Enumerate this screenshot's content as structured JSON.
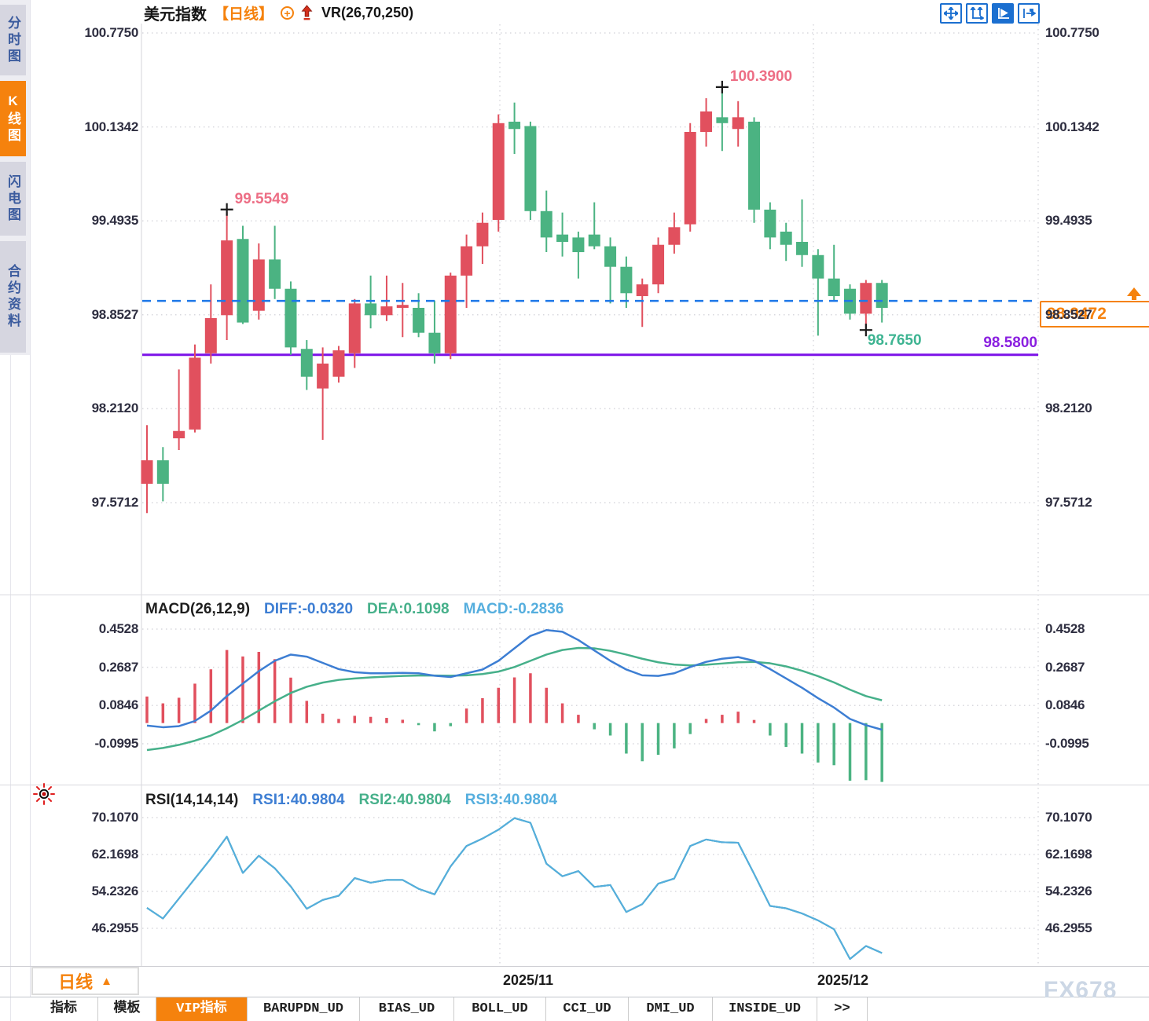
{
  "header": {
    "symbol": "美元指数",
    "period": "【日线】",
    "indicator": "VR(26,70,250)"
  },
  "toolbar": {
    "buttons": [
      {
        "icon": "move-crosshair-icon",
        "active": false
      },
      {
        "icon": "y-axis-scale-icon",
        "active": false
      },
      {
        "icon": "auto-scroll-icon",
        "active": true
      },
      {
        "icon": "go-to-latest-icon",
        "active": false
      }
    ]
  },
  "sidebar": {
    "items": [
      {
        "label": "分时图",
        "active": false
      },
      {
        "label": "K线图",
        "active": true
      },
      {
        "label": "闪电图",
        "active": false
      },
      {
        "label": "合约资料",
        "active": false
      }
    ]
  },
  "footer": {
    "period_button": "日线",
    "period_arrow": "▲",
    "date_labels": [
      "2025/11",
      "2025/12"
    ],
    "watermark": "FX678",
    "tabs": [
      {
        "label": "指标",
        "active": false
      },
      {
        "label": "模板",
        "active": false
      },
      {
        "label": "VIP指标",
        "active": true
      },
      {
        "label": "BARUPDN_UD",
        "active": false
      },
      {
        "label": "BIAS_UD",
        "active": false
      },
      {
        "label": "BOLL_UD",
        "active": false
      },
      {
        "label": "CCI_UD",
        "active": false
      },
      {
        "label": "DMI_UD",
        "active": false
      },
      {
        "label": "INSIDE_UD",
        "active": false
      },
      {
        "label": ">>",
        "active": false
      }
    ]
  },
  "chart_data": [
    {
      "type": "candlestick",
      "title": "美元指数 日线",
      "y_tick_labels": [
        "100.7750",
        "100.1342",
        "99.4935",
        "98.8527",
        "98.2120",
        "97.5712"
      ],
      "y_ticks": [
        100.775,
        100.1342,
        99.4935,
        98.8527,
        98.212,
        97.5712
      ],
      "ylim": [
        96.94,
        100.84
      ],
      "grid": "dotted",
      "up_color": "#e1505e",
      "down_color": "#4bb382",
      "candles_ohlc": [
        [
          97.7,
          98.1,
          97.5,
          97.86
        ],
        [
          97.86,
          97.95,
          97.58,
          97.7
        ],
        [
          98.01,
          98.48,
          97.93,
          98.06
        ],
        [
          98.07,
          98.65,
          98.05,
          98.56
        ],
        [
          98.59,
          99.06,
          98.52,
          98.83
        ],
        [
          98.85,
          99.5549,
          98.68,
          99.36
        ],
        [
          99.37,
          99.46,
          98.79,
          98.8
        ],
        [
          98.88,
          99.34,
          98.82,
          99.23
        ],
        [
          99.23,
          99.46,
          98.96,
          99.03
        ],
        [
          99.03,
          99.08,
          98.58,
          98.63
        ],
        [
          98.62,
          98.68,
          98.34,
          98.43
        ],
        [
          98.35,
          98.63,
          98.0,
          98.52
        ],
        [
          98.43,
          98.64,
          98.39,
          98.61
        ],
        [
          98.59,
          98.96,
          98.49,
          98.93
        ],
        [
          98.93,
          99.12,
          98.76,
          98.85
        ],
        [
          98.85,
          99.12,
          98.81,
          98.91
        ],
        [
          98.9,
          99.07,
          98.7,
          98.92
        ],
        [
          98.9,
          99.0,
          98.7,
          98.73
        ],
        [
          98.73,
          98.95,
          98.52,
          98.59
        ],
        [
          98.59,
          99.14,
          98.55,
          99.12
        ],
        [
          99.12,
          99.4,
          98.9,
          99.32
        ],
        [
          99.32,
          99.55,
          99.2,
          99.48
        ],
        [
          99.5,
          100.22,
          99.42,
          100.16
        ],
        [
          100.17,
          100.3,
          99.95,
          100.12
        ],
        [
          100.14,
          100.17,
          99.5,
          99.56
        ],
        [
          99.56,
          99.7,
          99.28,
          99.38
        ],
        [
          99.4,
          99.55,
          99.25,
          99.35
        ],
        [
          99.38,
          99.42,
          99.1,
          99.28
        ],
        [
          99.4,
          99.62,
          99.3,
          99.32
        ],
        [
          99.32,
          99.38,
          98.93,
          99.18
        ],
        [
          99.18,
          99.25,
          98.9,
          99.0
        ],
        [
          98.98,
          99.1,
          98.77,
          99.06
        ],
        [
          99.06,
          99.38,
          99.0,
          99.33
        ],
        [
          99.33,
          99.55,
          99.27,
          99.45
        ],
        [
          99.47,
          100.16,
          99.42,
          100.1
        ],
        [
          100.1,
          100.33,
          100.0,
          100.24
        ],
        [
          100.2,
          100.39,
          99.97,
          100.16
        ],
        [
          100.12,
          100.31,
          100.0,
          100.2
        ],
        [
          100.17,
          100.2,
          99.48,
          99.57
        ],
        [
          99.57,
          99.62,
          99.3,
          99.38
        ],
        [
          99.42,
          99.48,
          99.22,
          99.33
        ],
        [
          99.35,
          99.64,
          99.18,
          99.26
        ],
        [
          99.26,
          99.3,
          98.71,
          99.1
        ],
        [
          99.1,
          99.33,
          98.95,
          98.98
        ],
        [
          99.03,
          99.06,
          98.82,
          98.86
        ],
        [
          98.86,
          99.09,
          98.765,
          99.07
        ],
        [
          99.07,
          99.09,
          98.8,
          98.9
        ]
      ],
      "markers": [
        {
          "label": "99.5549",
          "candle": 6,
          "kind": "high"
        },
        {
          "label": "100.3900",
          "candle": 37,
          "kind": "high"
        },
        {
          "label": "98.7650",
          "candle": 46,
          "kind": "low"
        }
      ],
      "current_price": {
        "label": "98.9472",
        "value": 98.9472,
        "color": "#f5820d",
        "line_color": "#1e78e8",
        "line_style": "dashed"
      },
      "support_line": {
        "label": "98.5800",
        "value": 98.58,
        "color": "#7c12e8",
        "label_color": "#8a1fe0"
      },
      "x_axis_dates": [
        "2025/11",
        "2025/12"
      ]
    },
    {
      "type": "macd",
      "title": "MACD(26,12,9)",
      "legend": [
        {
          "text": "DIFF:-0.0320",
          "color": "#3d7ed3"
        },
        {
          "text": "DEA:0.1098",
          "color": "#46b08a"
        },
        {
          "text": "MACD:-0.2836",
          "color": "#55aede"
        }
      ],
      "y_tick_labels": [
        "0.4528",
        "0.2687",
        "0.0846",
        "-0.0995"
      ],
      "y_ticks": [
        0.4528,
        0.2687,
        0.0846,
        -0.0995
      ],
      "ylim": [
        -0.3,
        0.5
      ],
      "bar_up_color": "#e1505e",
      "bar_down_color": "#4bb382",
      "histogram": [
        0.128,
        0.095,
        0.122,
        0.19,
        0.259,
        0.352,
        0.321,
        0.343,
        0.308,
        0.219,
        0.107,
        0.045,
        0.02,
        0.035,
        0.03,
        0.025,
        0.016,
        -0.01,
        -0.04,
        -0.015,
        0.07,
        0.12,
        0.17,
        0.22,
        0.24,
        0.17,
        0.095,
        0.04,
        -0.03,
        -0.06,
        -0.147,
        -0.184,
        -0.153,
        -0.122,
        -0.053,
        0.02,
        0.04,
        0.055,
        0.015,
        -0.06,
        -0.115,
        -0.147,
        -0.19,
        -0.203,
        -0.278,
        -0.275,
        -0.2836
      ],
      "series": [
        {
          "name": "DIFF",
          "color": "#3d7ed3",
          "values": [
            -0.012,
            -0.02,
            -0.015,
            0.01,
            0.06,
            0.13,
            0.19,
            0.25,
            0.3,
            0.33,
            0.32,
            0.29,
            0.26,
            0.245,
            0.24,
            0.24,
            0.242,
            0.24,
            0.228,
            0.222,
            0.24,
            0.258,
            0.3,
            0.36,
            0.42,
            0.448,
            0.44,
            0.4,
            0.35,
            0.3,
            0.258,
            0.23,
            0.227,
            0.24,
            0.27,
            0.295,
            0.31,
            0.318,
            0.3,
            0.26,
            0.215,
            0.17,
            0.12,
            0.075,
            0.02,
            -0.01,
            -0.032
          ]
        },
        {
          "name": "DEA",
          "color": "#46b08a",
          "values": [
            -0.13,
            -0.12,
            -0.105,
            -0.085,
            -0.06,
            -0.025,
            0.015,
            0.06,
            0.105,
            0.145,
            0.175,
            0.195,
            0.208,
            0.215,
            0.22,
            0.224,
            0.227,
            0.229,
            0.229,
            0.228,
            0.23,
            0.236,
            0.248,
            0.27,
            0.3,
            0.33,
            0.352,
            0.362,
            0.36,
            0.348,
            0.33,
            0.31,
            0.293,
            0.282,
            0.278,
            0.281,
            0.287,
            0.293,
            0.295,
            0.288,
            0.273,
            0.252,
            0.226,
            0.196,
            0.161,
            0.13,
            0.1098
          ]
        }
      ]
    },
    {
      "type": "rsi",
      "title": "RSI(14,14,14)",
      "legend": [
        {
          "text": "RSI1:40.9804",
          "color": "#3d7ed3"
        },
        {
          "text": "RSI2:40.9804",
          "color": "#46b08a"
        },
        {
          "text": "RSI3:40.9804",
          "color": "#55aede"
        }
      ],
      "y_tick_labels": [
        "70.1070",
        "62.1698",
        "54.2326",
        "46.2955"
      ],
      "y_ticks": [
        70.107,
        62.1698,
        54.2326,
        46.2955
      ],
      "ylim": [
        38,
        70.5
      ],
      "line_color": "#55aede",
      "values": [
        50.7,
        48.4,
        52.7,
        57.0,
        61.3,
        66.0,
        58.2,
        61.9,
        59.2,
        55.3,
        50.5,
        52.4,
        53.3,
        57.1,
        56.1,
        56.7,
        56.7,
        54.8,
        53.6,
        59.6,
        64.0,
        65.6,
        67.5,
        70.0,
        69.0,
        60.2,
        57.5,
        58.6,
        55.2,
        55.6,
        49.8,
        51.5,
        55.9,
        57.0,
        64.0,
        65.4,
        64.8,
        64.7,
        58.0,
        51.1,
        50.6,
        49.5,
        48.0,
        46.1,
        39.7,
        42.5,
        40.98
      ]
    }
  ]
}
